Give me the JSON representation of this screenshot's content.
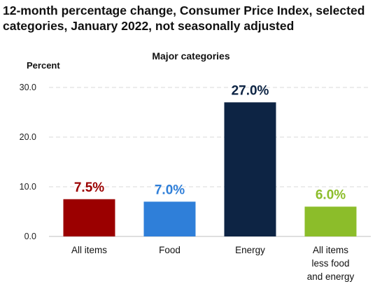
{
  "chart_data": {
    "type": "bar",
    "title": "12-month percentage change, Consumer Price Index, selected categories, January 2022, not seasonally adjusted",
    "subtitle": "Major categories",
    "ylabel": "Percent",
    "xlabel": "",
    "ylim": [
      0,
      30
    ],
    "yticks": [
      "0.0",
      "10.0",
      "20.0",
      "30.0"
    ],
    "grid": true,
    "categories": [
      [
        "All items"
      ],
      [
        "Food"
      ],
      [
        "Energy"
      ],
      [
        "All items",
        "less food",
        "and energy"
      ]
    ],
    "values": [
      7.5,
      7.0,
      27.0,
      6.0
    ],
    "data_labels": [
      "7.5%",
      "7.0%",
      "27.0%",
      "6.0%"
    ],
    "colors": [
      "#9b0000",
      "#2f7fd9",
      "#0d2444",
      "#8cbd2a"
    ]
  }
}
